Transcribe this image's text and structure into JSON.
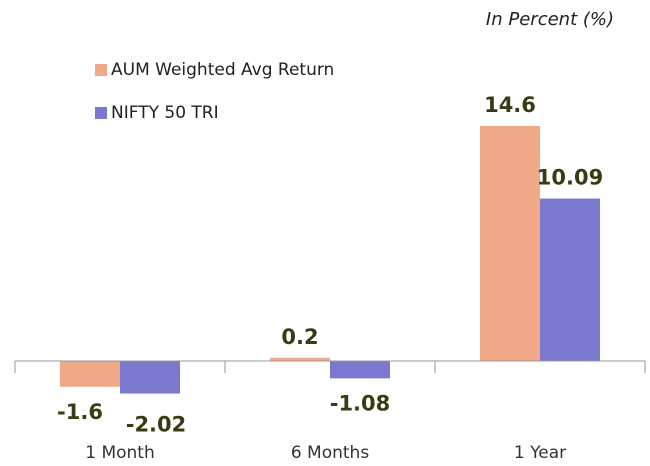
{
  "chart_data": {
    "type": "bar",
    "subtitle": "In Percent (%)",
    "categories": [
      "1 Month",
      "6 Months",
      "1 Year"
    ],
    "series": [
      {
        "name": "AUM Weighted Avg Return",
        "color": "#f0aa8a",
        "values": [
          -1.6,
          0.2,
          14.6
        ]
      },
      {
        "name": "NIFTY 50 TRI",
        "color": "#7b78cf",
        "values": [
          -2.02,
          -1.08,
          10.09
        ]
      }
    ],
    "ylim": [
      -3,
      16
    ],
    "legend": "upper left"
  }
}
